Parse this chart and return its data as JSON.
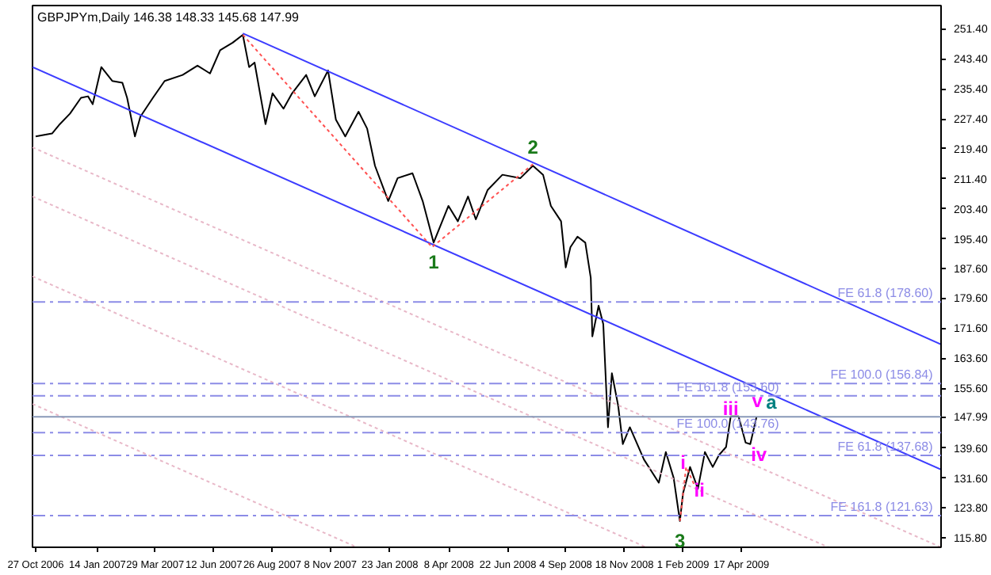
{
  "chart_data": {
    "type": "line",
    "title": "GBPJPYm,Daily  146.38 148.33 145.68 147.99",
    "grid": false,
    "marker": "none",
    "x": [
      "2006-10-27",
      "2006-11-17",
      "2006-11-27",
      "2006-12-10",
      "2006-12-24",
      "2007-01-02",
      "2007-01-08",
      "2007-01-19",
      "2007-02-02",
      "2007-02-15",
      "2007-02-21",
      "2007-03-03",
      "2007-03-10",
      "2007-03-26",
      "2007-04-10",
      "2007-05-03",
      "2007-05-22",
      "2007-06-07",
      "2007-06-20",
      "2007-07-06",
      "2007-07-19",
      "2007-07-27",
      "2007-08-03",
      "2007-08-17",
      "2007-08-26",
      "2007-09-09",
      "2007-09-20",
      "2007-10-08",
      "2007-10-19",
      "2007-11-05",
      "2007-11-15",
      "2007-11-27",
      "2007-12-14",
      "2007-12-25",
      "2008-01-04",
      "2008-01-21",
      "2008-02-02",
      "2008-02-21",
      "2008-03-05",
      "2008-03-19",
      "2008-04-07",
      "2008-04-19",
      "2008-05-02",
      "2008-05-12",
      "2008-05-27",
      "2008-06-15",
      "2008-07-08",
      "2008-07-24",
      "2008-08-06",
      "2008-08-16",
      "2008-08-29",
      "2008-09-04",
      "2008-09-10",
      "2008-09-19",
      "2008-09-29",
      "2008-10-06",
      "2008-10-08",
      "2008-10-16",
      "2008-10-22",
      "2008-10-28",
      "2008-11-02",
      "2008-11-10",
      "2008-11-16",
      "2008-11-25",
      "2008-12-13",
      "2009-01-01",
      "2009-01-10",
      "2009-01-20",
      "2009-01-28",
      "2009-02-01",
      "2009-02-10",
      "2009-02-20",
      "2009-03-01",
      "2009-03-11",
      "2009-03-19",
      "2009-03-28",
      "2009-04-03",
      "2009-04-13",
      "2009-04-22",
      "2009-04-28",
      "2009-05-06"
    ],
    "series": [
      {
        "color": "#000000",
        "line_style": "solid",
        "values": [
          222.7,
          223.5,
          226,
          228.8,
          233,
          233.4,
          231.3,
          241.2,
          237.5,
          237,
          233,
          222.7,
          228,
          233,
          237.5,
          239.1,
          241.6,
          239.5,
          245.7,
          247.7,
          249.8,
          241.2,
          242.4,
          226,
          234.2,
          230.1,
          234.2,
          239.1,
          233.4,
          240.3,
          227.2,
          222.7,
          229.3,
          224.8,
          214.9,
          205.5,
          211.6,
          212.9,
          205.5,
          194.4,
          204.2,
          200.1,
          206.7,
          200.6,
          208.4,
          212.5,
          211.6,
          214.9,
          212.5,
          204.2,
          200.1,
          187.8,
          193.2,
          196,
          194.4,
          185,
          169.4,
          177.6,
          172.7,
          145.2,
          159.6,
          151,
          140.7,
          145.2,
          136.6,
          130.4,
          138.6,
          131.7,
          120.2,
          127.6,
          134.6,
          128.8,
          138.6,
          134.6,
          137.8,
          139.9,
          148.1,
          148.1,
          141.1,
          140.7,
          148
        ]
      },
      {
        "type": "line",
        "color": "#3c3cff",
        "line_style": "solid",
        "x": [
          "2007-07-19",
          "2009-12-28"
        ],
        "values": [
          250.2,
          167.3
        ]
      },
      {
        "type": "line",
        "color": "#3c3cff",
        "line_style": "solid",
        "x": [
          "2006-10-23",
          "2009-12-28"
        ],
        "values": [
          241.2,
          133.9
        ]
      },
      {
        "type": "line",
        "color": "#ff5050",
        "line_style": "dotted",
        "x": [
          "2007-07-19",
          "2008-03-17",
          "2008-07-24"
        ],
        "values": [
          249.8,
          193.2,
          215.3
        ]
      },
      {
        "type": "line",
        "color": "#ff5050",
        "line_style": "dotted",
        "x": [
          "2009-01-28",
          "2009-02-05",
          "2009-02-16"
        ],
        "values": [
          120.2,
          134.6,
          129.6
        ]
      },
      {
        "type": "line",
        "color": "#e8b8c8",
        "line_style": "dotted",
        "x": [
          "2006-10-23",
          "2009-12-28"
        ],
        "values": [
          219.8,
          113.2
        ]
      },
      {
        "type": "line",
        "color": "#e8b8c8",
        "line_style": "dotted",
        "x": [
          "2006-10-23",
          "2009-08-06"
        ],
        "values": [
          206.7,
          113.2
        ]
      },
      {
        "type": "line",
        "color": "#e8b8c8",
        "line_style": "dotted",
        "x": [
          "2006-10-23",
          "2008-12-16"
        ],
        "values": [
          185.4,
          113.2
        ]
      },
      {
        "type": "line",
        "color": "#e8b8c8",
        "line_style": "dotted",
        "x": [
          "2006-10-23",
          "2007-12-12"
        ],
        "values": [
          151.4,
          113.2
        ]
      }
    ],
    "xlim": [
      "2006-10-23",
      "2009-12-28"
    ],
    "xticks": [
      {
        "value": "2006-10-27",
        "label": "27 Oct 2006"
      },
      {
        "value": "2007-01-14",
        "label": "14 Jan 2007"
      },
      {
        "value": "2007-03-29",
        "label": "29 Mar 2007"
      },
      {
        "value": "2007-06-12",
        "label": "12 Jun 2007"
      },
      {
        "value": "2007-08-26",
        "label": "26 Aug 2007"
      },
      {
        "value": "2007-11-08",
        "label": "8 Nov 2007"
      },
      {
        "value": "2008-01-23",
        "label": "23 Jan 2008"
      },
      {
        "value": "2008-04-08",
        "label": "8 Apr 2008"
      },
      {
        "value": "2008-06-22",
        "label": "22 Jun 2008"
      },
      {
        "value": "2008-09-04",
        "label": "4 Sep 2008"
      },
      {
        "value": "2008-11-18",
        "label": "18 Nov 2008"
      },
      {
        "value": "2009-02-01",
        "label": "1 Feb 2009"
      },
      {
        "value": "2009-04-17",
        "label": "17 Apr 2009"
      }
    ],
    "ylim": [
      113.2,
      257.6
    ],
    "yticks": [
      {
        "value": 251.4,
        "label": "251.40"
      },
      {
        "value": 243.4,
        "label": "243.40"
      },
      {
        "value": 235.4,
        "label": "235.40"
      },
      {
        "value": 227.4,
        "label": "227.40"
      },
      {
        "value": 219.4,
        "label": "219.40"
      },
      {
        "value": 211.4,
        "label": "211.40"
      },
      {
        "value": 203.4,
        "label": "203.40"
      },
      {
        "value": 195.4,
        "label": "195.40"
      },
      {
        "value": 187.6,
        "label": "187.60"
      },
      {
        "value": 179.6,
        "label": "179.60"
      },
      {
        "value": 171.6,
        "label": "171.60"
      },
      {
        "value": 163.6,
        "label": "163.60"
      },
      {
        "value": 155.6,
        "label": "155.60"
      },
      {
        "value": 139.6,
        "label": "139.60"
      },
      {
        "value": 131.6,
        "label": "131.60"
      },
      {
        "value": 123.8,
        "label": "123.80"
      },
      {
        "value": 115.8,
        "label": "115.80"
      }
    ],
    "ref_lines": [
      {
        "axis": "y",
        "value": 178.6,
        "label": "FE 61.8  (178.60)",
        "color": "#8c8ce6",
        "line_style": "dashed"
      },
      {
        "axis": "y",
        "value": 156.84,
        "label": "FE 100.0  (156.84)",
        "color": "#8c8ce6",
        "line_style": "dashed"
      },
      {
        "axis": "y",
        "value": 153.6,
        "label": "FE 161.8  (153.60)",
        "color": "#8c8ce6",
        "line_style": "dashed"
      },
      {
        "axis": "y",
        "value": 143.76,
        "label": "FE 100.0  (143.76)",
        "color": "#8c8ce6",
        "line_style": "dashed"
      },
      {
        "axis": "y",
        "value": 137.68,
        "label": "FE 61.8  (137.68)",
        "color": "#8c8ce6",
        "line_style": "dashed"
      },
      {
        "axis": "y",
        "value": 121.63,
        "label": "FE 161.8  (121.63)",
        "color": "#8c8ce6",
        "line_style": "dashed"
      },
      {
        "axis": "y",
        "value": 147.99,
        "label": "147.99",
        "color": "#8898b8",
        "line_style": "solid"
      }
    ],
    "annotations": [
      {
        "text": "1",
        "x": "2008-03-19",
        "y": 194.4
      },
      {
        "text": "2",
        "x": "2008-07-24",
        "y": 214.9
      },
      {
        "text": "3",
        "x": "2009-01-28",
        "y": 120.2
      },
      {
        "text": "i",
        "x": "2009-02-01",
        "y": 135.8
      },
      {
        "text": "ii",
        "x": "2009-02-22",
        "y": 128.4
      },
      {
        "text": "iii",
        "x": "2009-04-03",
        "y": 150.1
      },
      {
        "text": "iv",
        "x": "2009-05-09",
        "y": 137.8
      },
      {
        "text": "v",
        "x": "2009-05-07",
        "y": 152.2
      },
      {
        "text": "a",
        "x": "2009-05-25",
        "y": 151.8
      }
    ]
  }
}
